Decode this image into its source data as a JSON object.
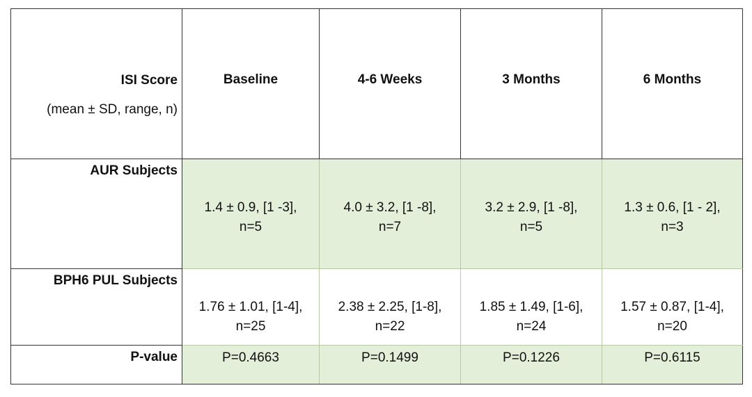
{
  "table": {
    "corner": {
      "title": "ISI Score",
      "subtitle": "(mean ± SD, range, n)"
    },
    "columns": [
      "Baseline",
      "4-6 Weeks",
      "3 Months",
      "6 Months"
    ],
    "rows": [
      {
        "label": "AUR Subjects",
        "cells": [
          {
            "line1": "1.4 ± 0.9, [1 -3],",
            "line2": "n=5"
          },
          {
            "line1": "4.0 ± 3.2, [1 -8],",
            "line2": "n=7"
          },
          {
            "line1": "3.2 ± 2.9, [1 -8],",
            "line2": "n=5"
          },
          {
            "line1": "1.3 ± 0.6, [1 - 2],",
            "line2": "n=3"
          }
        ]
      },
      {
        "label": "BPH6 PUL Subjects",
        "cells": [
          {
            "line1": "1.76 ± 1.01, [1-4],",
            "line2": "n=25"
          },
          {
            "line1": "2.38 ± 2.25, [1-8],",
            "line2": "n=22"
          },
          {
            "line1": "1.85 ± 1.49, [1-6],",
            "line2": "n=24"
          },
          {
            "line1": "1.57 ± 0.87, [1-4],",
            "line2": "n=20"
          }
        ]
      },
      {
        "label": "P-value",
        "cells": [
          {
            "line1": "P=0.4663"
          },
          {
            "line1": "P=0.1499"
          },
          {
            "line1": "P=0.1226"
          },
          {
            "line1": "P=0.6115"
          }
        ]
      }
    ],
    "colors": {
      "shaded_cell": "#e4efda",
      "grid": "#b7c9a4",
      "outer_border": "#333333"
    }
  }
}
